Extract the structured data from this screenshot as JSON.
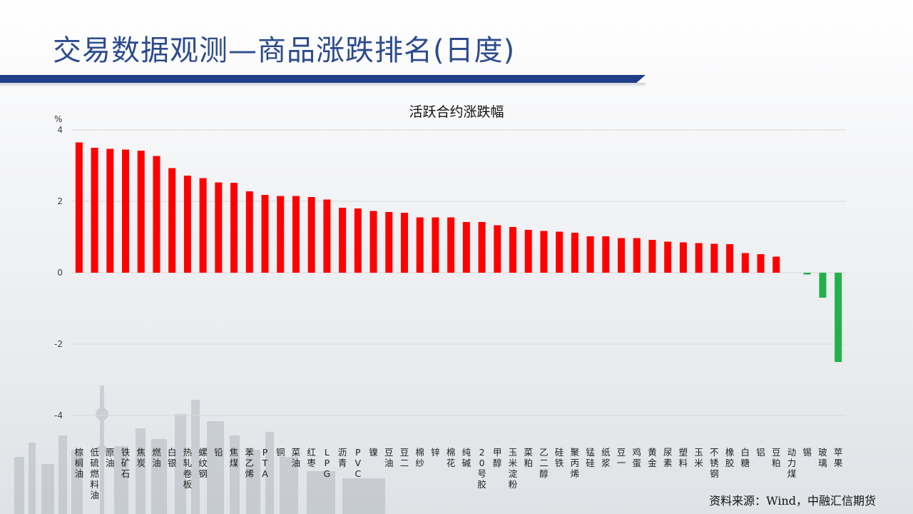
{
  "page": {
    "title": "交易数据观测—商品涨跌排名(日度)",
    "source": "资料来源：Wind，中融汇信期货"
  },
  "chart_data": {
    "type": "bar",
    "title": "活跃合约涨跌幅",
    "ylabel": "%",
    "ylim": [
      -4,
      4
    ],
    "yticks": [
      -4,
      -2,
      0,
      2,
      4
    ],
    "grid": true,
    "legend": "none",
    "colors": {
      "positive": "#ff0000",
      "negative": "#22b14c",
      "grid": "#d9d9d9"
    },
    "categories": [
      "棕榈油",
      "低硫燃料油",
      "原油",
      "铁矿石",
      "焦炭",
      "燃油",
      "白银",
      "热轧卷板",
      "螺纹钢",
      "铅",
      "焦煤",
      "苯乙烯",
      "PTA",
      "铜",
      "菜油",
      "红枣",
      "LPG",
      "沥青",
      "PVC",
      "镍",
      "豆油",
      "豆二",
      "棉纱",
      "锌",
      "棉花",
      "纯碱",
      "20号胶",
      "甲醇",
      "玉米淀粉",
      "菜粕",
      "乙二醇",
      "硅铁",
      "聚丙烯",
      "锰硅",
      "纸浆",
      "豆一",
      "鸡蛋",
      "黄金",
      "尿素",
      "塑料",
      "玉米",
      "不锈钢",
      "橡胶",
      "白糖",
      "铝",
      "豆粕",
      "动力煤",
      "锡",
      "玻璃",
      "苹果"
    ],
    "values": [
      3.65,
      3.5,
      3.47,
      3.45,
      3.42,
      3.27,
      2.93,
      2.72,
      2.65,
      2.53,
      2.52,
      2.28,
      2.18,
      2.15,
      2.15,
      2.12,
      2.05,
      1.82,
      1.8,
      1.73,
      1.7,
      1.68,
      1.55,
      1.55,
      1.55,
      1.42,
      1.42,
      1.33,
      1.28,
      1.2,
      1.17,
      1.15,
      1.12,
      1.02,
      1.02,
      0.97,
      0.97,
      0.92,
      0.87,
      0.85,
      0.83,
      0.81,
      0.8,
      0.55,
      0.52,
      0.45,
      0.0,
      -0.05,
      -0.7,
      -2.5
    ]
  }
}
